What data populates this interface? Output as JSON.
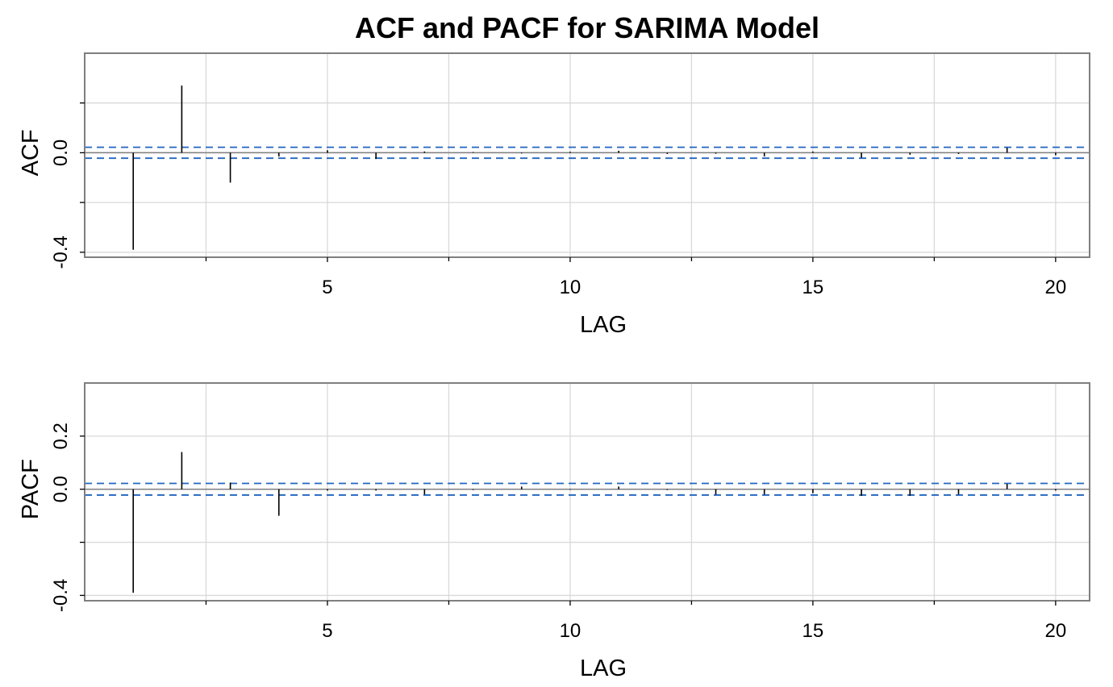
{
  "figure": {
    "title": "ACF and PACF for SARIMA Model"
  },
  "colors": {
    "grid": "#d9d9d9",
    "frame": "#7f7f7f",
    "zero_line": "#7f7f7f",
    "bars": "#000000",
    "conf_band": "#2166c0"
  },
  "chart_data": [
    {
      "type": "bar",
      "subtype": "autocorrelation",
      "title": "",
      "xlabel": "LAG",
      "ylabel": "ACF",
      "xlim": [
        0,
        20.7
      ],
      "ylim": [
        -0.42,
        0.4
      ],
      "x_ticks": [
        5,
        10,
        15,
        20
      ],
      "x_ticks_minor": [
        2.5,
        7.5,
        12.5,
        17.5
      ],
      "y_ticks_labeled": [
        -0.4,
        0.0
      ],
      "y_ticks_labels": [
        "-0.4",
        "0.0"
      ],
      "y_ticks_minor": [
        -0.2,
        0.2
      ],
      "y_grid": [
        -0.4,
        -0.2,
        0.0,
        0.2
      ],
      "grid": true,
      "confidence_bound": 0.022,
      "lags": [
        1,
        2,
        3,
        4,
        5,
        6,
        7,
        8,
        9,
        10,
        11,
        12,
        13,
        14,
        15,
        16,
        17,
        18,
        19,
        20
      ],
      "values": [
        -0.39,
        0.27,
        -0.12,
        -0.015,
        0.01,
        -0.025,
        0.005,
        0.003,
        -0.003,
        0.004,
        0.008,
        -0.005,
        -0.004,
        -0.015,
        0.005,
        -0.02,
        -0.008,
        -0.005,
        0.02,
        -0.01
      ]
    },
    {
      "type": "bar",
      "subtype": "partial-autocorrelation",
      "title": "",
      "xlabel": "LAG",
      "ylabel": "PACF",
      "xlim": [
        0,
        20.7
      ],
      "ylim": [
        -0.42,
        0.4
      ],
      "x_ticks": [
        5,
        10,
        15,
        20
      ],
      "x_ticks_minor": [
        2.5,
        7.5,
        12.5,
        17.5
      ],
      "y_ticks_labeled": [
        -0.4,
        0.0,
        0.2
      ],
      "y_ticks_labels": [
        "-0.4",
        "0.0",
        "0.2"
      ],
      "y_ticks_minor": [
        -0.2
      ],
      "y_grid": [
        -0.4,
        -0.2,
        0.0,
        0.2
      ],
      "grid": true,
      "confidence_bound": 0.022,
      "lags": [
        1,
        2,
        3,
        4,
        5,
        6,
        7,
        8,
        9,
        10,
        11,
        12,
        13,
        14,
        15,
        16,
        17,
        18,
        19,
        20
      ],
      "values": [
        -0.39,
        0.14,
        0.025,
        -0.1,
        -0.005,
        -0.005,
        -0.02,
        -0.003,
        0.01,
        -0.002,
        0.01,
        -0.003,
        -0.02,
        -0.02,
        -0.015,
        -0.025,
        -0.025,
        -0.02,
        0.02,
        -0.005
      ]
    }
  ]
}
